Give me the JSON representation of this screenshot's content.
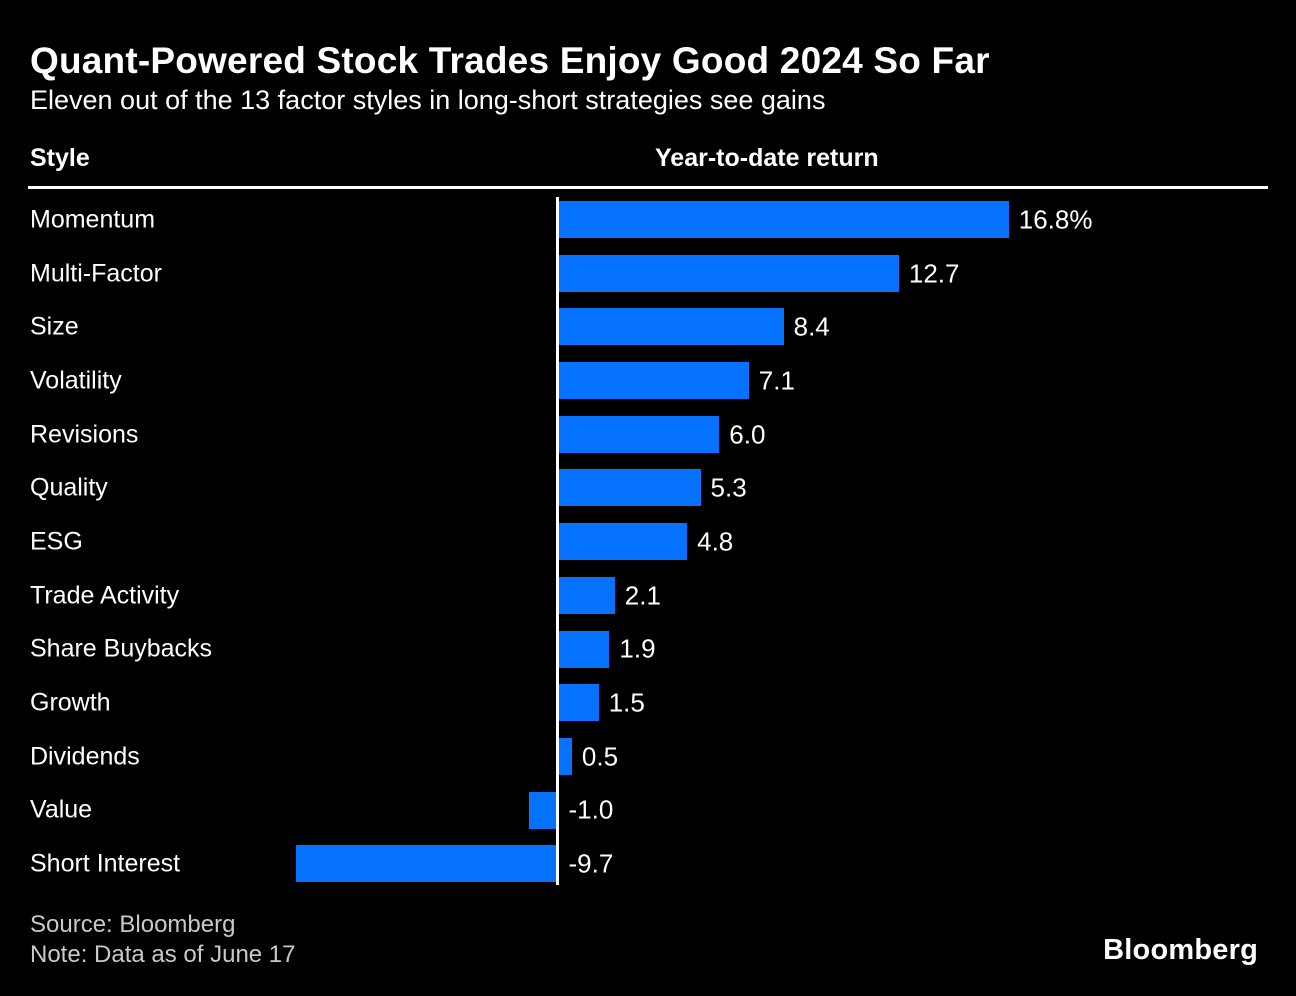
{
  "title": "Quant-Powered Stock Trades Enjoy Good 2024 So Far",
  "subtitle": "Eleven out of the 13 factor styles in long-short strategies see gains",
  "columns": {
    "style": "Style",
    "value": "Year-to-date return"
  },
  "chart_data": {
    "type": "bar",
    "orientation": "horizontal",
    "title": "Quant-Powered Stock Trades Enjoy Good 2024 So Far",
    "subtitle": "Eleven out of the 13 factor styles in long-short strategies see gains",
    "xlabel": "Year-to-date return",
    "ylabel": "Style",
    "categories": [
      "Momentum",
      "Multi-Factor",
      "Size",
      "Volatility",
      "Revisions",
      "Quality",
      "ESG",
      "Trade Activity",
      "Share Buybacks",
      "Growth",
      "Dividends",
      "Value",
      "Short Interest"
    ],
    "values": [
      16.8,
      12.7,
      8.4,
      7.1,
      6.0,
      5.3,
      4.8,
      2.1,
      1.9,
      1.5,
      0.5,
      -1.0,
      -9.7
    ],
    "value_labels": [
      "16.8%",
      "12.7",
      "8.4",
      "7.1",
      "6.0",
      "5.3",
      "4.8",
      "2.1",
      "1.9",
      "1.5",
      "0.5",
      "-1.0",
      "-9.7"
    ],
    "bar_color": "#0673FF",
    "baseline_color": "#FFFFFF",
    "grid": false,
    "legend": false
  },
  "footer": {
    "source": "Source: Bloomberg",
    "note": "Note: Data as of June 17",
    "logo": "Bloomberg"
  },
  "colors": {
    "background": "#000000",
    "text": "#FFFFFF",
    "muted_text": "#C9C9C9",
    "bar": "#0673FF"
  }
}
